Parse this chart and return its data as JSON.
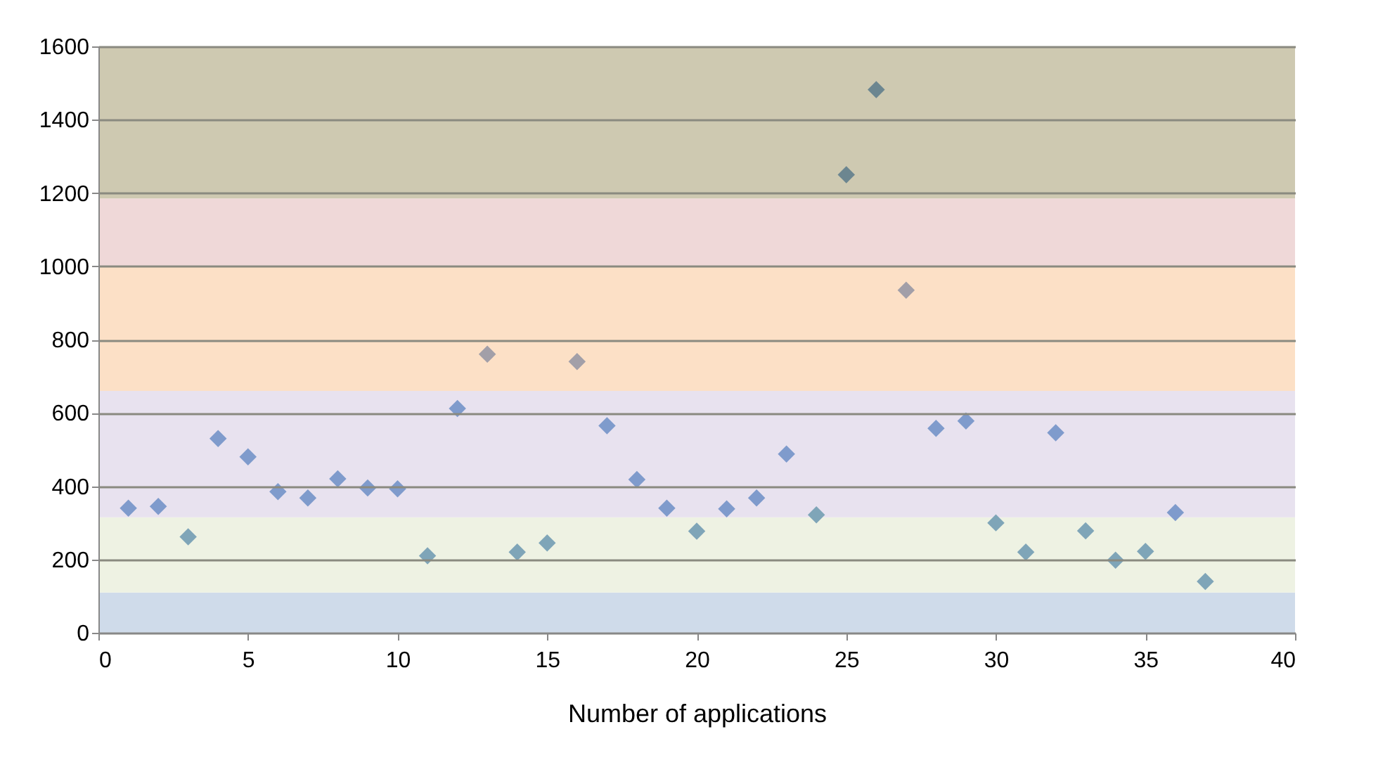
{
  "chart_data": {
    "type": "scatter",
    "xlabel": "Number of applications",
    "x": [
      1,
      2,
      3,
      4,
      5,
      6,
      7,
      8,
      9,
      10,
      11,
      12,
      13,
      14,
      15,
      16,
      17,
      18,
      19,
      20,
      21,
      22,
      23,
      24,
      25,
      26,
      27,
      28,
      29,
      30,
      31,
      32,
      33,
      34,
      35,
      36,
      37
    ],
    "series": [
      {
        "values": [
          340,
          345,
          262,
          530,
          480,
          385,
          368,
          420,
          395,
          393,
          210,
          612,
          760,
          220,
          245,
          740,
          565,
          418,
          340,
          277,
          338,
          368,
          488,
          322,
          1250,
          1482,
          935,
          558,
          578,
          300,
          220,
          546,
          278,
          198,
          222,
          328,
          140
        ],
        "colors": [
          "#7f9bcc",
          "#7f9bcc",
          "#7fa5b8",
          "#7f9bcc",
          "#7f9bcc",
          "#7f9bcc",
          "#7f9bcc",
          "#7f9bcc",
          "#7f9bcc",
          "#7f9bcc",
          "#7fa5b8",
          "#7f9bcc",
          "#a29fa8",
          "#7fa5b8",
          "#7fa5b8",
          "#a29fa8",
          "#7f9bcc",
          "#7f9bcc",
          "#7f9bcc",
          "#7fa5b8",
          "#7f9bcc",
          "#7f9bcc",
          "#7f9bcc",
          "#7fa5b8",
          "#6c8690",
          "#6c8690",
          "#a29fa8",
          "#7f9bcc",
          "#7f9bcc",
          "#7fa5b8",
          "#7fa5b8",
          "#7f9bcc",
          "#7fa5b8",
          "#7fa5b8",
          "#7fa5b8",
          "#7f9bcc",
          "#7fa5b8"
        ]
      }
    ],
    "marker": "diamond",
    "grid": "y",
    "xlim": [
      0,
      40
    ],
    "xticks": [
      0,
      5,
      10,
      15,
      20,
      25,
      30,
      35,
      40
    ],
    "ylim": [
      0,
      1600
    ],
    "yticks": [
      0,
      200,
      400,
      600,
      800,
      1000,
      1200,
      1400,
      1600
    ],
    "bands": [
      {
        "axis": "y",
        "from": 0,
        "to": 110,
        "color": "#cfdbea"
      },
      {
        "axis": "y",
        "from": 110,
        "to": 315,
        "color": "#eef2e3"
      },
      {
        "axis": "y",
        "from": 315,
        "to": 660,
        "color": "#e8e2ef"
      },
      {
        "axis": "y",
        "from": 660,
        "to": 1000,
        "color": "#fce0c6"
      },
      {
        "axis": "y",
        "from": 1000,
        "to": 1185,
        "color": "#efd8d8"
      },
      {
        "axis": "y",
        "from": 1185,
        "to": 1600,
        "color": "#cec9b1"
      }
    ]
  }
}
